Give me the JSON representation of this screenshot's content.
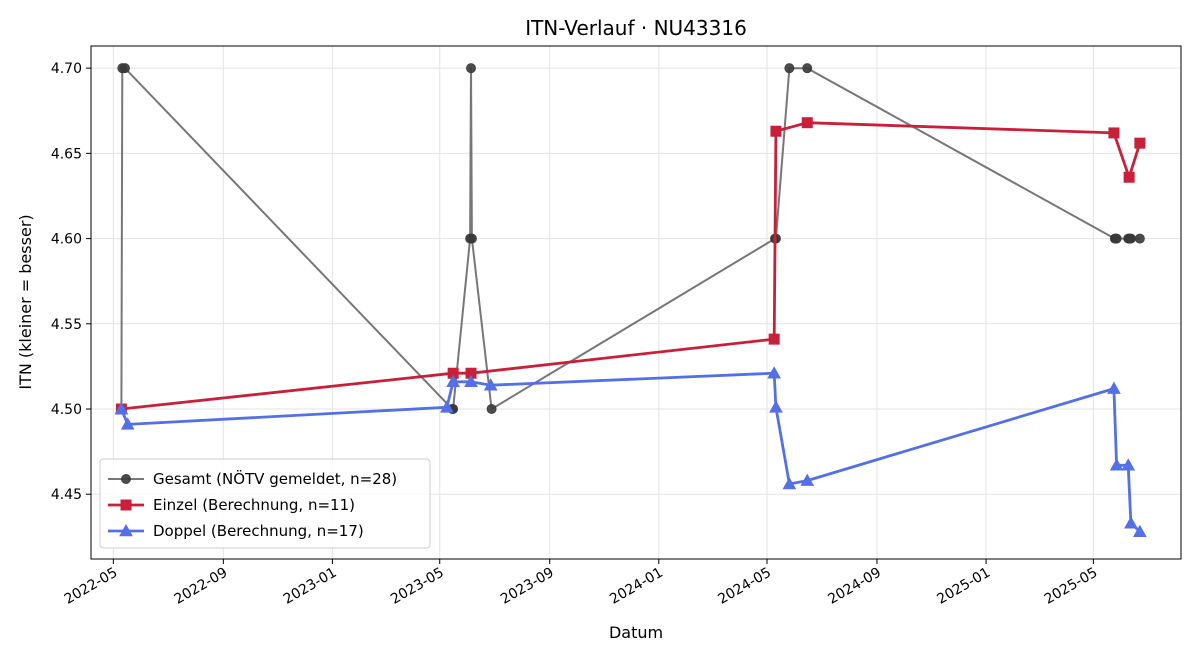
{
  "chart_data": {
    "type": "line",
    "title": "ITN-Verlauf · NU43316",
    "xlabel": "Datum",
    "ylabel": "ITN  (kleiner = besser)",
    "ylim": [
      4.412,
      4.713
    ],
    "xlim": [
      "2022-04-06",
      "2025-08-07"
    ],
    "x_ticks": [
      "2022-05",
      "2022-09",
      "2023-01",
      "2023-05",
      "2023-09",
      "2024-01",
      "2024-05",
      "2024-09",
      "2025-01",
      "2025-05"
    ],
    "y_ticks": [
      4.45,
      4.5,
      4.55,
      4.6,
      4.65,
      4.7
    ],
    "y_tick_labels": [
      "4.45",
      "4.50",
      "4.55",
      "4.60",
      "4.65",
      "4.70"
    ],
    "grid": true,
    "legend_position": "lower-left",
    "series": [
      {
        "name": "Gesamt (NÖTV gemeldet, n=28)",
        "color": "#555555",
        "marker": "circle",
        "points": [
          [
            "2022-05-10",
            4.5
          ],
          [
            "2022-05-11",
            4.7
          ],
          [
            "2022-05-14",
            4.7
          ],
          [
            "2023-05-15",
            4.5
          ],
          [
            "2023-05-16",
            4.5
          ],
          [
            "2023-06-04",
            4.6
          ],
          [
            "2023-06-05",
            4.7
          ],
          [
            "2023-06-06",
            4.6
          ],
          [
            "2023-06-28",
            4.5
          ],
          [
            "2024-05-10",
            4.6
          ],
          [
            "2024-05-11",
            4.6
          ],
          [
            "2024-05-26",
            4.7
          ],
          [
            "2024-06-15",
            4.7
          ],
          [
            "2025-05-25",
            4.6
          ],
          [
            "2025-05-26",
            4.6
          ],
          [
            "2025-05-27",
            4.6
          ],
          [
            "2025-06-09",
            4.6
          ],
          [
            "2025-06-10",
            4.6
          ],
          [
            "2025-06-11",
            4.6
          ],
          [
            "2025-06-12",
            4.6
          ],
          [
            "2025-06-22",
            4.6
          ]
        ]
      },
      {
        "name": "Einzel (Berechnung, n=11)",
        "color": "#c8203b",
        "marker": "square",
        "points": [
          [
            "2022-05-10",
            4.5
          ],
          [
            "2023-05-16",
            4.521
          ],
          [
            "2023-06-05",
            4.521
          ],
          [
            "2024-05-09",
            4.541
          ],
          [
            "2024-05-11",
            4.663
          ],
          [
            "2024-06-15",
            4.668
          ],
          [
            "2025-05-24",
            4.662
          ],
          [
            "2025-06-10",
            4.636
          ],
          [
            "2025-06-22",
            4.656
          ]
        ]
      },
      {
        "name": "Doppel (Berechnung, n=17)",
        "color": "#5470e6",
        "marker": "triangle",
        "points": [
          [
            "2022-05-10",
            4.5
          ],
          [
            "2022-05-17",
            4.491
          ],
          [
            "2023-05-09",
            4.501
          ],
          [
            "2023-05-16",
            4.516
          ],
          [
            "2023-06-05",
            4.516
          ],
          [
            "2023-06-27",
            4.514
          ],
          [
            "2024-05-09",
            4.521
          ],
          [
            "2024-05-11",
            4.501
          ],
          [
            "2024-05-26",
            4.456
          ],
          [
            "2024-06-15",
            4.458
          ],
          [
            "2025-05-24",
            4.512
          ],
          [
            "2025-05-27",
            4.467
          ],
          [
            "2025-06-09",
            4.467
          ],
          [
            "2025-06-12",
            4.433
          ],
          [
            "2025-06-22",
            4.428
          ]
        ]
      }
    ]
  }
}
